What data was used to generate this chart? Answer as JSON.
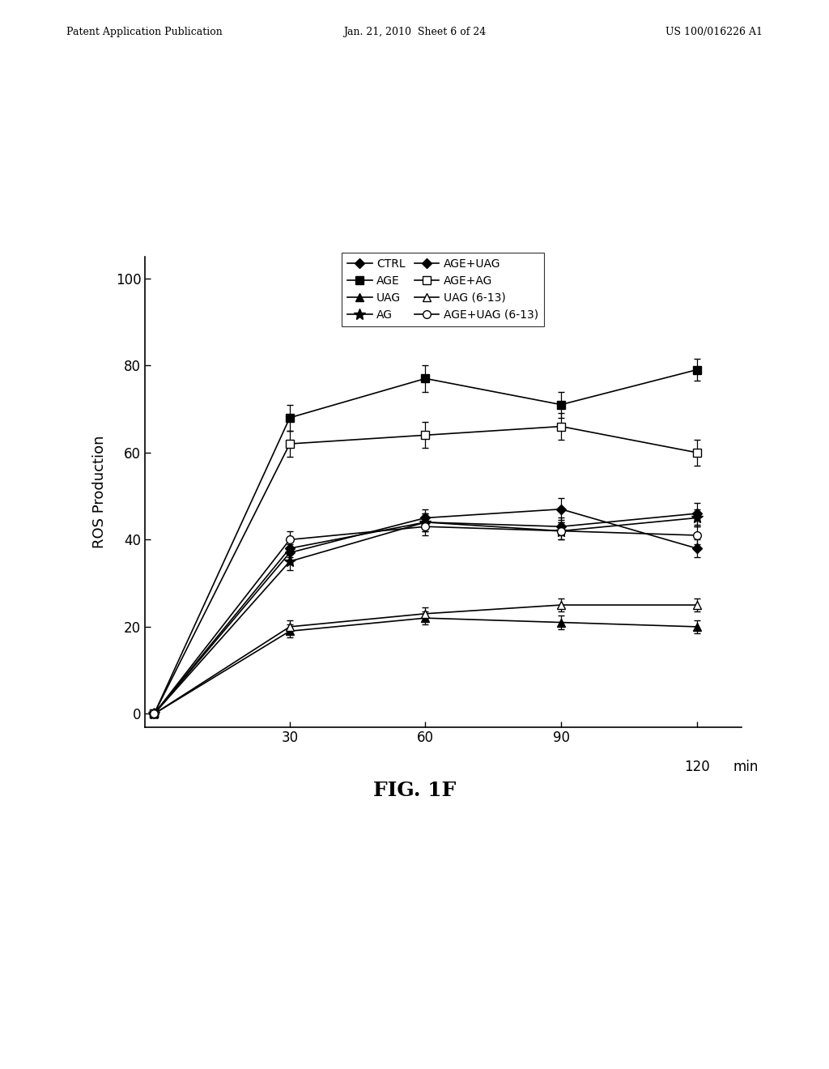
{
  "x": [
    0,
    30,
    60,
    90,
    120
  ],
  "series": {
    "CTRL": {
      "y": [
        0,
        38,
        44,
        43,
        46
      ],
      "yerr": [
        0,
        2,
        2,
        2,
        2.5
      ],
      "marker": "D",
      "fillstyle": "full",
      "color": "#000000",
      "linestyle": "-",
      "markersize": 6,
      "label": "CTRL"
    },
    "AGE": {
      "y": [
        0,
        68,
        77,
        71,
        79
      ],
      "yerr": [
        0,
        3,
        3,
        3,
        2.5
      ],
      "marker": "s",
      "fillstyle": "full",
      "color": "#000000",
      "linestyle": "-",
      "markersize": 7,
      "label": "AGE"
    },
    "UAG": {
      "y": [
        0,
        19,
        22,
        21,
        20
      ],
      "yerr": [
        0,
        1.5,
        1.5,
        1.5,
        1.5
      ],
      "marker": "^",
      "fillstyle": "full",
      "color": "#000000",
      "linestyle": "-",
      "markersize": 7,
      "label": "UAG"
    },
    "AG": {
      "y": [
        0,
        35,
        44,
        42,
        45
      ],
      "yerr": [
        0,
        2,
        2,
        2,
        2
      ],
      "marker": "*",
      "fillstyle": "full",
      "color": "#000000",
      "linestyle": "-",
      "markersize": 10,
      "label": "AG"
    },
    "AGE+UAG": {
      "y": [
        0,
        37,
        45,
        47,
        38
      ],
      "yerr": [
        0,
        2,
        2,
        2.5,
        2
      ],
      "marker": "D",
      "fillstyle": "full",
      "color": "#000000",
      "linestyle": "-",
      "markersize": 6,
      "label": "AGE+UAG"
    },
    "AGE+AG": {
      "y": [
        0,
        62,
        64,
        66,
        60
      ],
      "yerr": [
        0,
        3,
        3,
        3,
        3
      ],
      "marker": "s",
      "fillstyle": "none",
      "color": "#000000",
      "linestyle": "-",
      "markersize": 7,
      "label": "AGE+AG"
    },
    "UAG (6-13)": {
      "y": [
        0,
        20,
        23,
        25,
        25
      ],
      "yerr": [
        0,
        1.5,
        1.5,
        1.5,
        1.5
      ],
      "marker": "^",
      "fillstyle": "none",
      "color": "#000000",
      "linestyle": "-",
      "markersize": 7,
      "label": "UAG (6-13)"
    },
    "AGE+UAG (6-13)": {
      "y": [
        0,
        40,
        43,
        42,
        41
      ],
      "yerr": [
        0,
        2,
        2,
        2,
        2
      ],
      "marker": "o",
      "fillstyle": "none",
      "color": "#000000",
      "linestyle": "-",
      "markersize": 7,
      "label": "AGE+UAG (6-13)"
    }
  },
  "ylabel": "ROS Production",
  "xticks": [
    30,
    60,
    90,
    120
  ],
  "yticks": [
    0,
    20,
    40,
    60,
    80,
    100
  ],
  "ylim": [
    -3,
    105
  ],
  "xlim": [
    -2,
    130
  ],
  "figure_caption": "FIG. 1F",
  "header_left": "Patent Application Publication",
  "header_center": "Jan. 21, 2010  Sheet 6 of 24",
  "header_right": "US 100/016226 A1",
  "background_color": "#ffffff"
}
